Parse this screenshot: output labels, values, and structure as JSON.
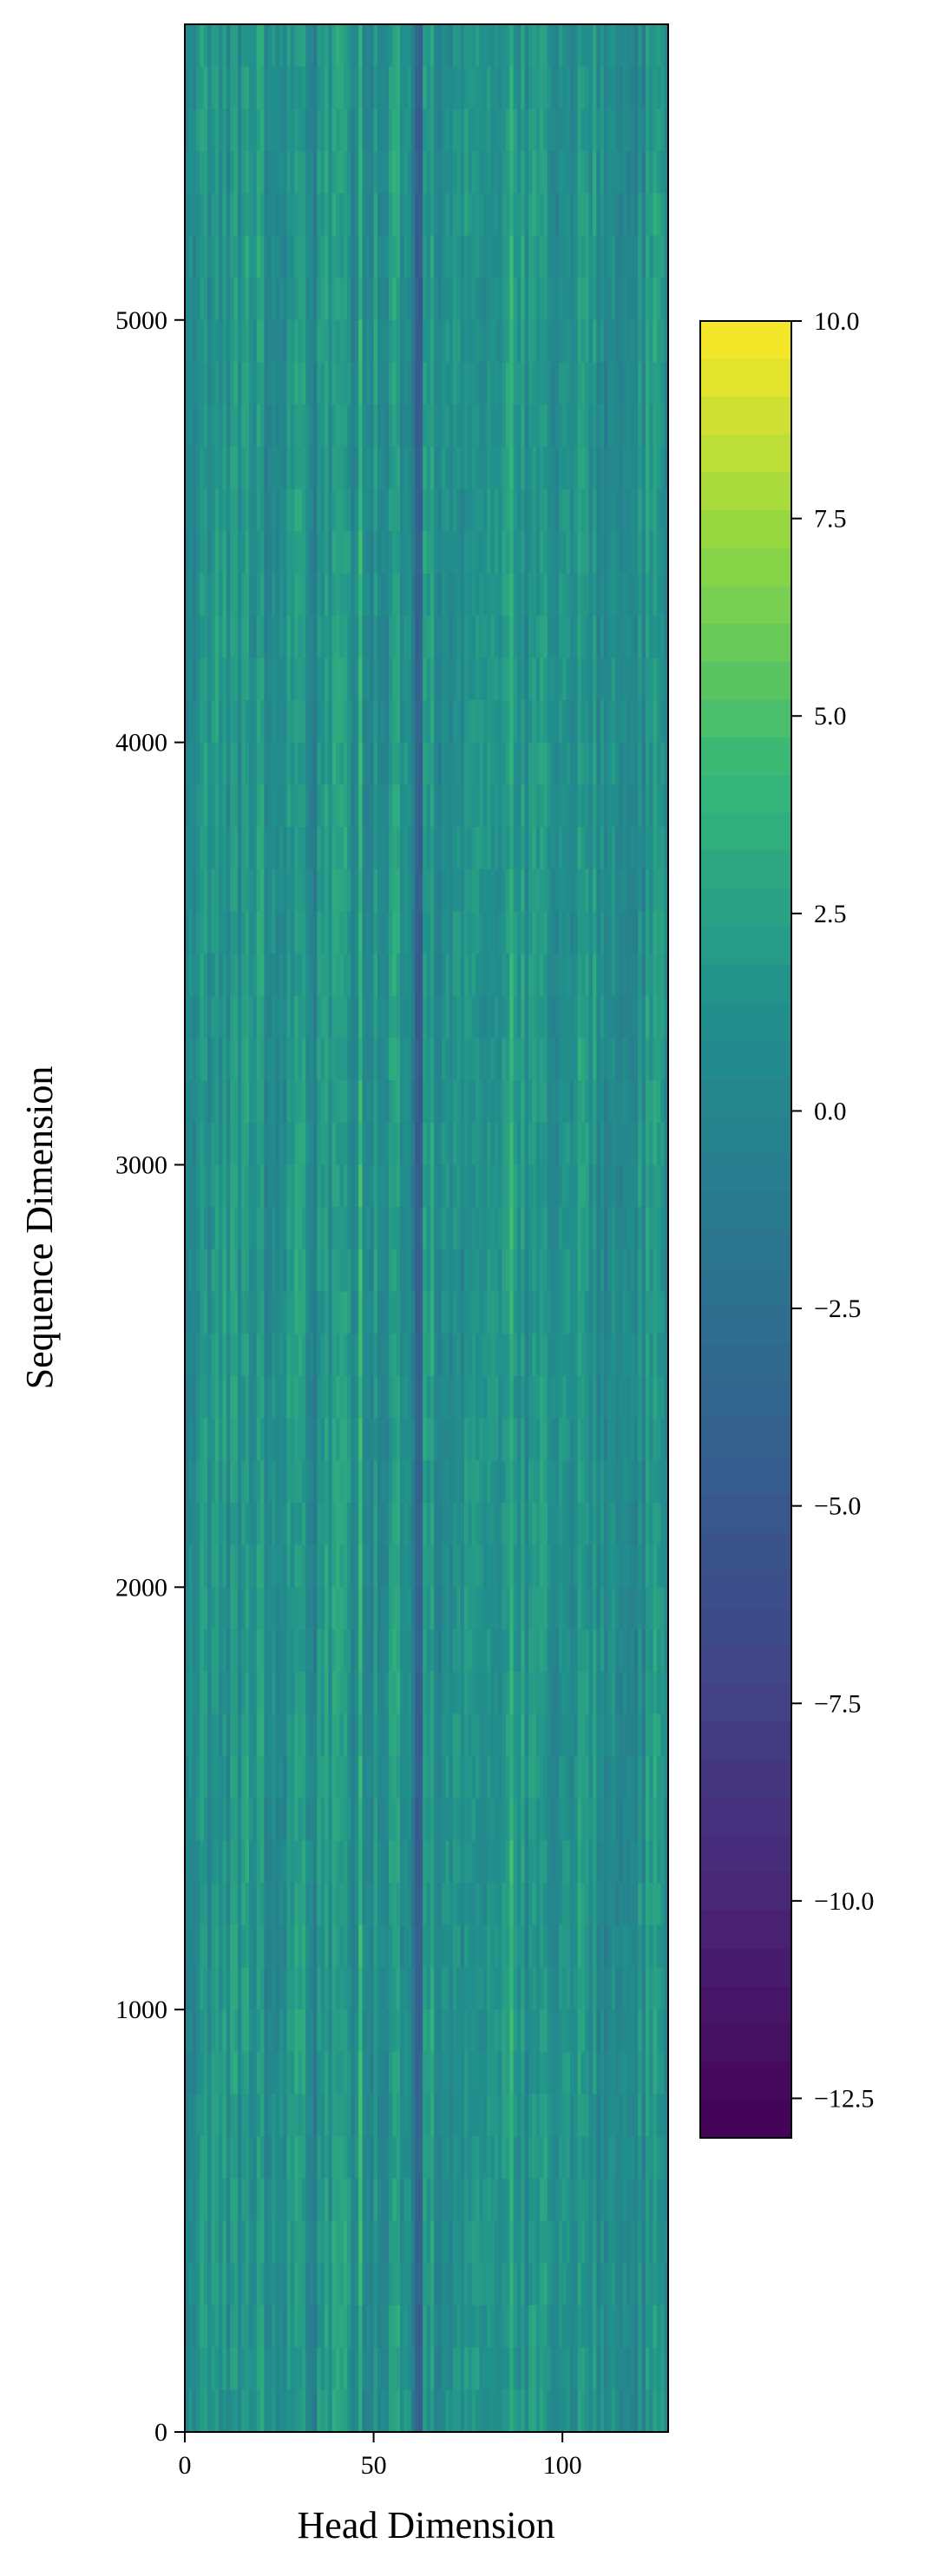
{
  "chart_data": {
    "type": "heatmap",
    "title": "",
    "xlabel": "Head Dimension",
    "ylabel": "Sequence Dimension",
    "xlim": [
      0,
      128
    ],
    "ylim": [
      0,
      5700
    ],
    "x_ticks": [
      {
        "value": 0,
        "label": "0"
      },
      {
        "value": 50,
        "label": "50"
      },
      {
        "value": 100,
        "label": "100"
      }
    ],
    "y_ticks": [
      {
        "value": 0,
        "label": "0"
      },
      {
        "value": 1000,
        "label": "1000"
      },
      {
        "value": 2000,
        "label": "2000"
      },
      {
        "value": 3000,
        "label": "3000"
      },
      {
        "value": 4000,
        "label": "4000"
      },
      {
        "value": 5000,
        "label": "5000"
      }
    ],
    "colormap": "viridis",
    "colorbar": {
      "vmin": -13.0,
      "vmax": 10.0,
      "levels": 48,
      "ticks": [
        {
          "value": 10.0,
          "label": "10.0"
        },
        {
          "value": 7.5,
          "label": "7.5"
        },
        {
          "value": 5.0,
          "label": "5.0"
        },
        {
          "value": 2.5,
          "label": "2.5"
        },
        {
          "value": 0.0,
          "label": "0.0"
        },
        {
          "value": -2.5,
          "label": "−2.5"
        },
        {
          "value": -5.0,
          "label": "−5.0"
        },
        {
          "value": -7.5,
          "label": "−7.5"
        },
        {
          "value": -10.0,
          "label": "−10.0"
        },
        {
          "value": -12.5,
          "label": "−12.5"
        }
      ]
    },
    "grid": false,
    "notes_visual": "values mostly between -3 and 5; dark vertical stripe near head dim 62; lighter bands around dims 20, 45-60, 85, 120"
  }
}
